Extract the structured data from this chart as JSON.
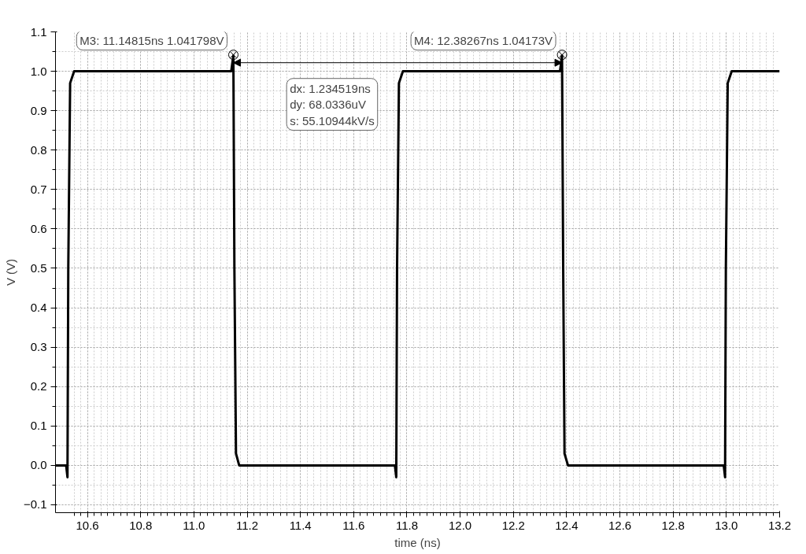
{
  "chart_data": {
    "type": "line",
    "xlabel": "time (ns)",
    "ylabel": "V (V)",
    "x": [
      10.48,
      10.52,
      10.525,
      10.528,
      10.535,
      10.55,
      11.14,
      11.14815,
      11.152,
      11.158,
      11.17,
      11.755,
      11.76,
      11.763,
      11.77,
      11.785,
      12.375,
      12.38267,
      12.387,
      12.392,
      12.405,
      12.99,
      12.995,
      12.998,
      13.005,
      13.02,
      13.2
    ],
    "series": [
      {
        "color": "#000000",
        "values": [
          0,
          0,
          -0.03,
          0.5,
          0.97,
          1.0,
          1.0,
          1.04,
          0.5,
          0.03,
          0,
          0,
          -0.03,
          0.5,
          0.97,
          1.0,
          1.0,
          1.04,
          0.5,
          0.03,
          0,
          0,
          -0.03,
          0.5,
          0.97,
          1.0,
          1.0
        ]
      }
    ],
    "xlim": [
      10.48,
      13.2
    ],
    "ylim": [
      -0.12,
      1.1
    ],
    "xticks": [
      10.6,
      10.8,
      {
        "value": 11.0,
        "label": "11.0"
      },
      11.2,
      11.4,
      11.6,
      11.8,
      {
        "value": 12.0,
        "label": "12.0"
      },
      12.2,
      12.4,
      12.6,
      12.8,
      {
        "value": 13.0,
        "label": "13.0"
      },
      13.2
    ],
    "yticks": [
      -0.1,
      {
        "value": 0,
        "label": "0.0"
      },
      0.1,
      0.2,
      0.3,
      0.4,
      0.5,
      0.6,
      0.7,
      0.8,
      0.9,
      {
        "value": 1,
        "label": "1.0"
      },
      1.1
    ],
    "grid": true,
    "marker": "none",
    "line_style": "solid",
    "annotations": [
      {
        "text": "M3: 11.14815ns 1.041798V",
        "x": 11.14815,
        "y": 1.041798
      },
      {
        "text": "M4: 12.38267ns 1.04173V",
        "x": 12.38267,
        "y": 1.04173
      },
      "dx: 1.234519ns\ndy: 68.0336uV\ns: 55.10944kV/s"
    ]
  }
}
